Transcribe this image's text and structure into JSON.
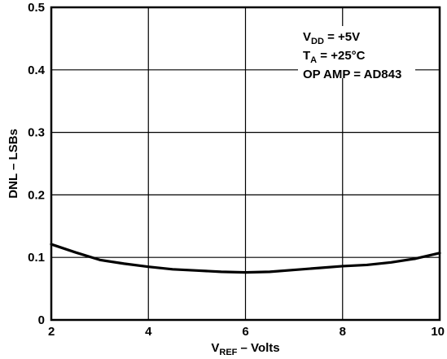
{
  "chart_data": {
    "type": "line",
    "title": "",
    "xlabel": {
      "main": "V",
      "sub": "REF",
      "rest": " – Volts"
    },
    "ylabel": "DNL – LSBs",
    "xlim": [
      2,
      10
    ],
    "ylim": [
      0,
      0.5
    ],
    "xticks": [
      "2",
      "4",
      "6",
      "8",
      "10"
    ],
    "yticks": [
      "0",
      "0.1",
      "0.2",
      "0.3",
      "0.4",
      "0.5"
    ],
    "grid": true,
    "series": [
      {
        "x": [
          2,
          2.5,
          3,
          3.5,
          4,
          4.5,
          5,
          5.5,
          6,
          6.5,
          7,
          7.5,
          8,
          8.5,
          9,
          9.5,
          10
        ],
        "y": [
          0.121,
          0.108,
          0.096,
          0.09,
          0.085,
          0.081,
          0.079,
          0.077,
          0.076,
          0.077,
          0.08,
          0.083,
          0.086,
          0.088,
          0.092,
          0.098,
          0.107
        ]
      }
    ],
    "annotations": [
      {
        "main": "V",
        "sub": "DD",
        "rest": " = +5V"
      },
      {
        "main": "T",
        "sub": "A",
        "rest": " = +25°C"
      },
      {
        "main": "OP AMP = AD843",
        "sub": "",
        "rest": ""
      }
    ]
  }
}
